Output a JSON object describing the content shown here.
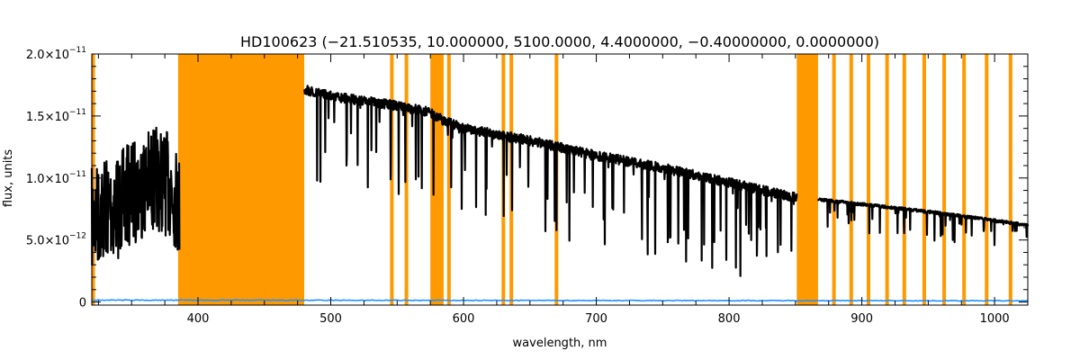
{
  "chart_data": {
    "type": "line",
    "title": "HD100623    (−21.510535, 10.000000, 5100.0000, 4.4000000, −0.40000000, 0.0000000)",
    "xlabel": "wavelength, nm",
    "ylabel": "flux, units",
    "xlim": [
      320,
      1025
    ],
    "ylim": [
      -2.5e-13,
      2e-11
    ],
    "x_ticks": [
      400,
      500,
      600,
      700,
      800,
      900,
      1000
    ],
    "x_tick_labels": [
      "400",
      "500",
      "600",
      "700",
      "800",
      "900",
      "1000"
    ],
    "y_ticks": [
      0,
      5e-12,
      1e-11,
      1.5e-11,
      2e-11
    ],
    "y_tick_labels": [
      {
        "mant": "0",
        "exp": ""
      },
      {
        "mant": "5.0×10",
        "exp": "−12"
      },
      {
        "mant": "1.0×10",
        "exp": "−11"
      },
      {
        "mant": "1.5×10",
        "exp": "−11"
      },
      {
        "mant": "2.0×10",
        "exp": "−11"
      }
    ],
    "masked_regions": [
      [
        385,
        480
      ],
      [
        575,
        585
      ],
      [
        851,
        867
      ]
    ],
    "masked_lines": [
      321,
      546,
      557,
      589,
      630,
      636,
      670,
      879,
      892,
      905,
      919,
      932,
      947,
      962,
      977,
      994,
      1012
    ],
    "spectrum_segments": [
      {
        "x": [
          320,
          330,
          340,
          350,
          360,
          370,
          380,
          386
        ],
        "y": [
          1.08e-11,
          1.18e-11,
          1.2e-11,
          1.3e-11,
          1.38e-11,
          1.42e-11,
          1.35e-11,
          1.2e-11
        ],
        "noise": 8.5e-12
      },
      {
        "x": [
          480,
          500,
          550,
          575,
          585,
          600,
          650,
          700,
          750,
          800,
          851
        ],
        "y": [
          1.75e-11,
          1.7e-11,
          1.62e-11,
          1.57e-11,
          1.5e-11,
          1.44e-11,
          1.34e-11,
          1.22e-11,
          1.12e-11,
          1e-11,
          8.8e-12
        ],
        "noise": 1.3e-12
      },
      {
        "x": [
          867,
          900,
          950,
          1000,
          1025
        ],
        "y": [
          8.4e-12,
          8e-12,
          7.4e-12,
          6.7e-12,
          6.3e-12
        ],
        "noise": 4e-13
      }
    ],
    "error_series": {
      "x": [
        320,
        1025
      ],
      "y": [
        1.5e-13,
        1e-13
      ]
    },
    "colors": {
      "spectrum": "#000000",
      "mask": "#ff9900",
      "error": "#1e90ff",
      "axes": "#000000"
    }
  }
}
